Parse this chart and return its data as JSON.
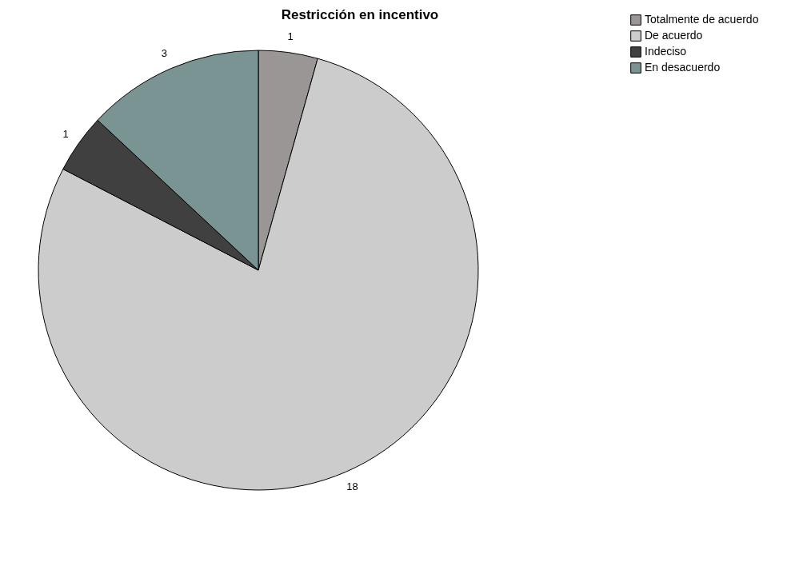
{
  "chart_data": {
    "type": "pie",
    "title": "Restricción en incentivo",
    "categories": [
      "Totalmente de acuerdo",
      "De acuerdo",
      "Indeciso",
      "En desacuerdo"
    ],
    "values": [
      1,
      18,
      1,
      3
    ],
    "colors": [
      "#9a9696",
      "#cccccc",
      "#404040",
      "#7a9494"
    ],
    "data_labels": true,
    "legend": "top right"
  }
}
